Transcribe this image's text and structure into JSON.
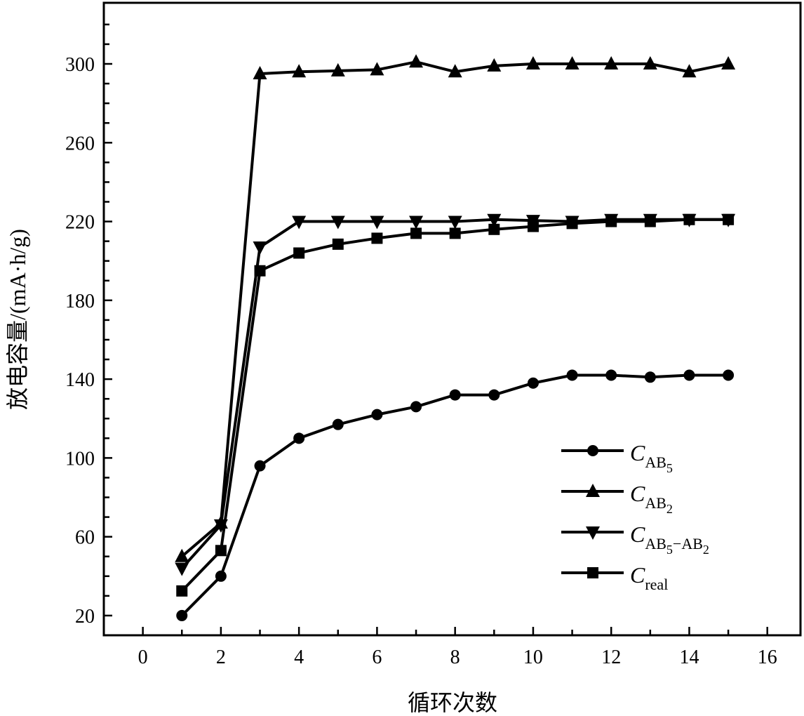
{
  "chart_data": {
    "type": "line",
    "title": "",
    "xlabel": "循环次数",
    "ylabel": "放电容量/(mA·h/g)",
    "xlim": [
      -1,
      16.85
    ],
    "ylim": [
      10,
      331
    ],
    "xticks": [
      0,
      2,
      4,
      6,
      8,
      10,
      12,
      14,
      16
    ],
    "yticks": [
      20,
      60,
      100,
      140,
      180,
      220,
      260,
      300
    ],
    "grid": false,
    "legend_position": "bottom-right",
    "x": [
      1,
      2,
      3,
      4,
      5,
      6,
      7,
      8,
      9,
      10,
      11,
      12,
      13,
      14,
      15
    ],
    "series": [
      {
        "name": "C_AB5",
        "marker": "circle",
        "legend": {
          "main": "C",
          "parts": [
            {
              "t": "AB",
              "l": 1
            },
            {
              "t": "5",
              "l": 2
            }
          ]
        },
        "values": [
          20,
          40,
          96,
          110,
          117,
          122,
          126,
          132,
          132,
          138,
          142,
          142,
          141,
          142,
          142
        ]
      },
      {
        "name": "C_AB2",
        "marker": "triangle-up",
        "legend": {
          "main": "C",
          "parts": [
            {
              "t": "AB",
              "l": 1
            },
            {
              "t": "2",
              "l": 2
            }
          ]
        },
        "values": [
          50,
          67,
          295,
          296,
          296.5,
          297,
          301,
          296,
          299,
          300,
          300,
          300,
          300,
          296,
          300
        ]
      },
      {
        "name": "C_AB5-AB2",
        "marker": "triangle-down",
        "legend": {
          "main": "C",
          "parts": [
            {
              "t": "AB",
              "l": 1
            },
            {
              "t": "5",
              "l": 2
            },
            {
              "t": "−AB",
              "l": 1
            },
            {
              "t": "2",
              "l": 2
            }
          ]
        },
        "values": [
          44,
          66,
          207,
          220,
          220,
          220,
          220,
          220,
          221,
          220.5,
          220,
          221,
          221,
          221,
          221
        ]
      },
      {
        "name": "C_real",
        "marker": "square",
        "legend": {
          "main": "C",
          "parts": [
            {
              "t": "real",
              "l": 1
            }
          ]
        },
        "values": [
          32.5,
          53,
          195,
          204,
          208.5,
          211.5,
          214,
          214,
          216,
          217.5,
          219,
          220,
          220,
          221,
          221
        ]
      }
    ]
  }
}
